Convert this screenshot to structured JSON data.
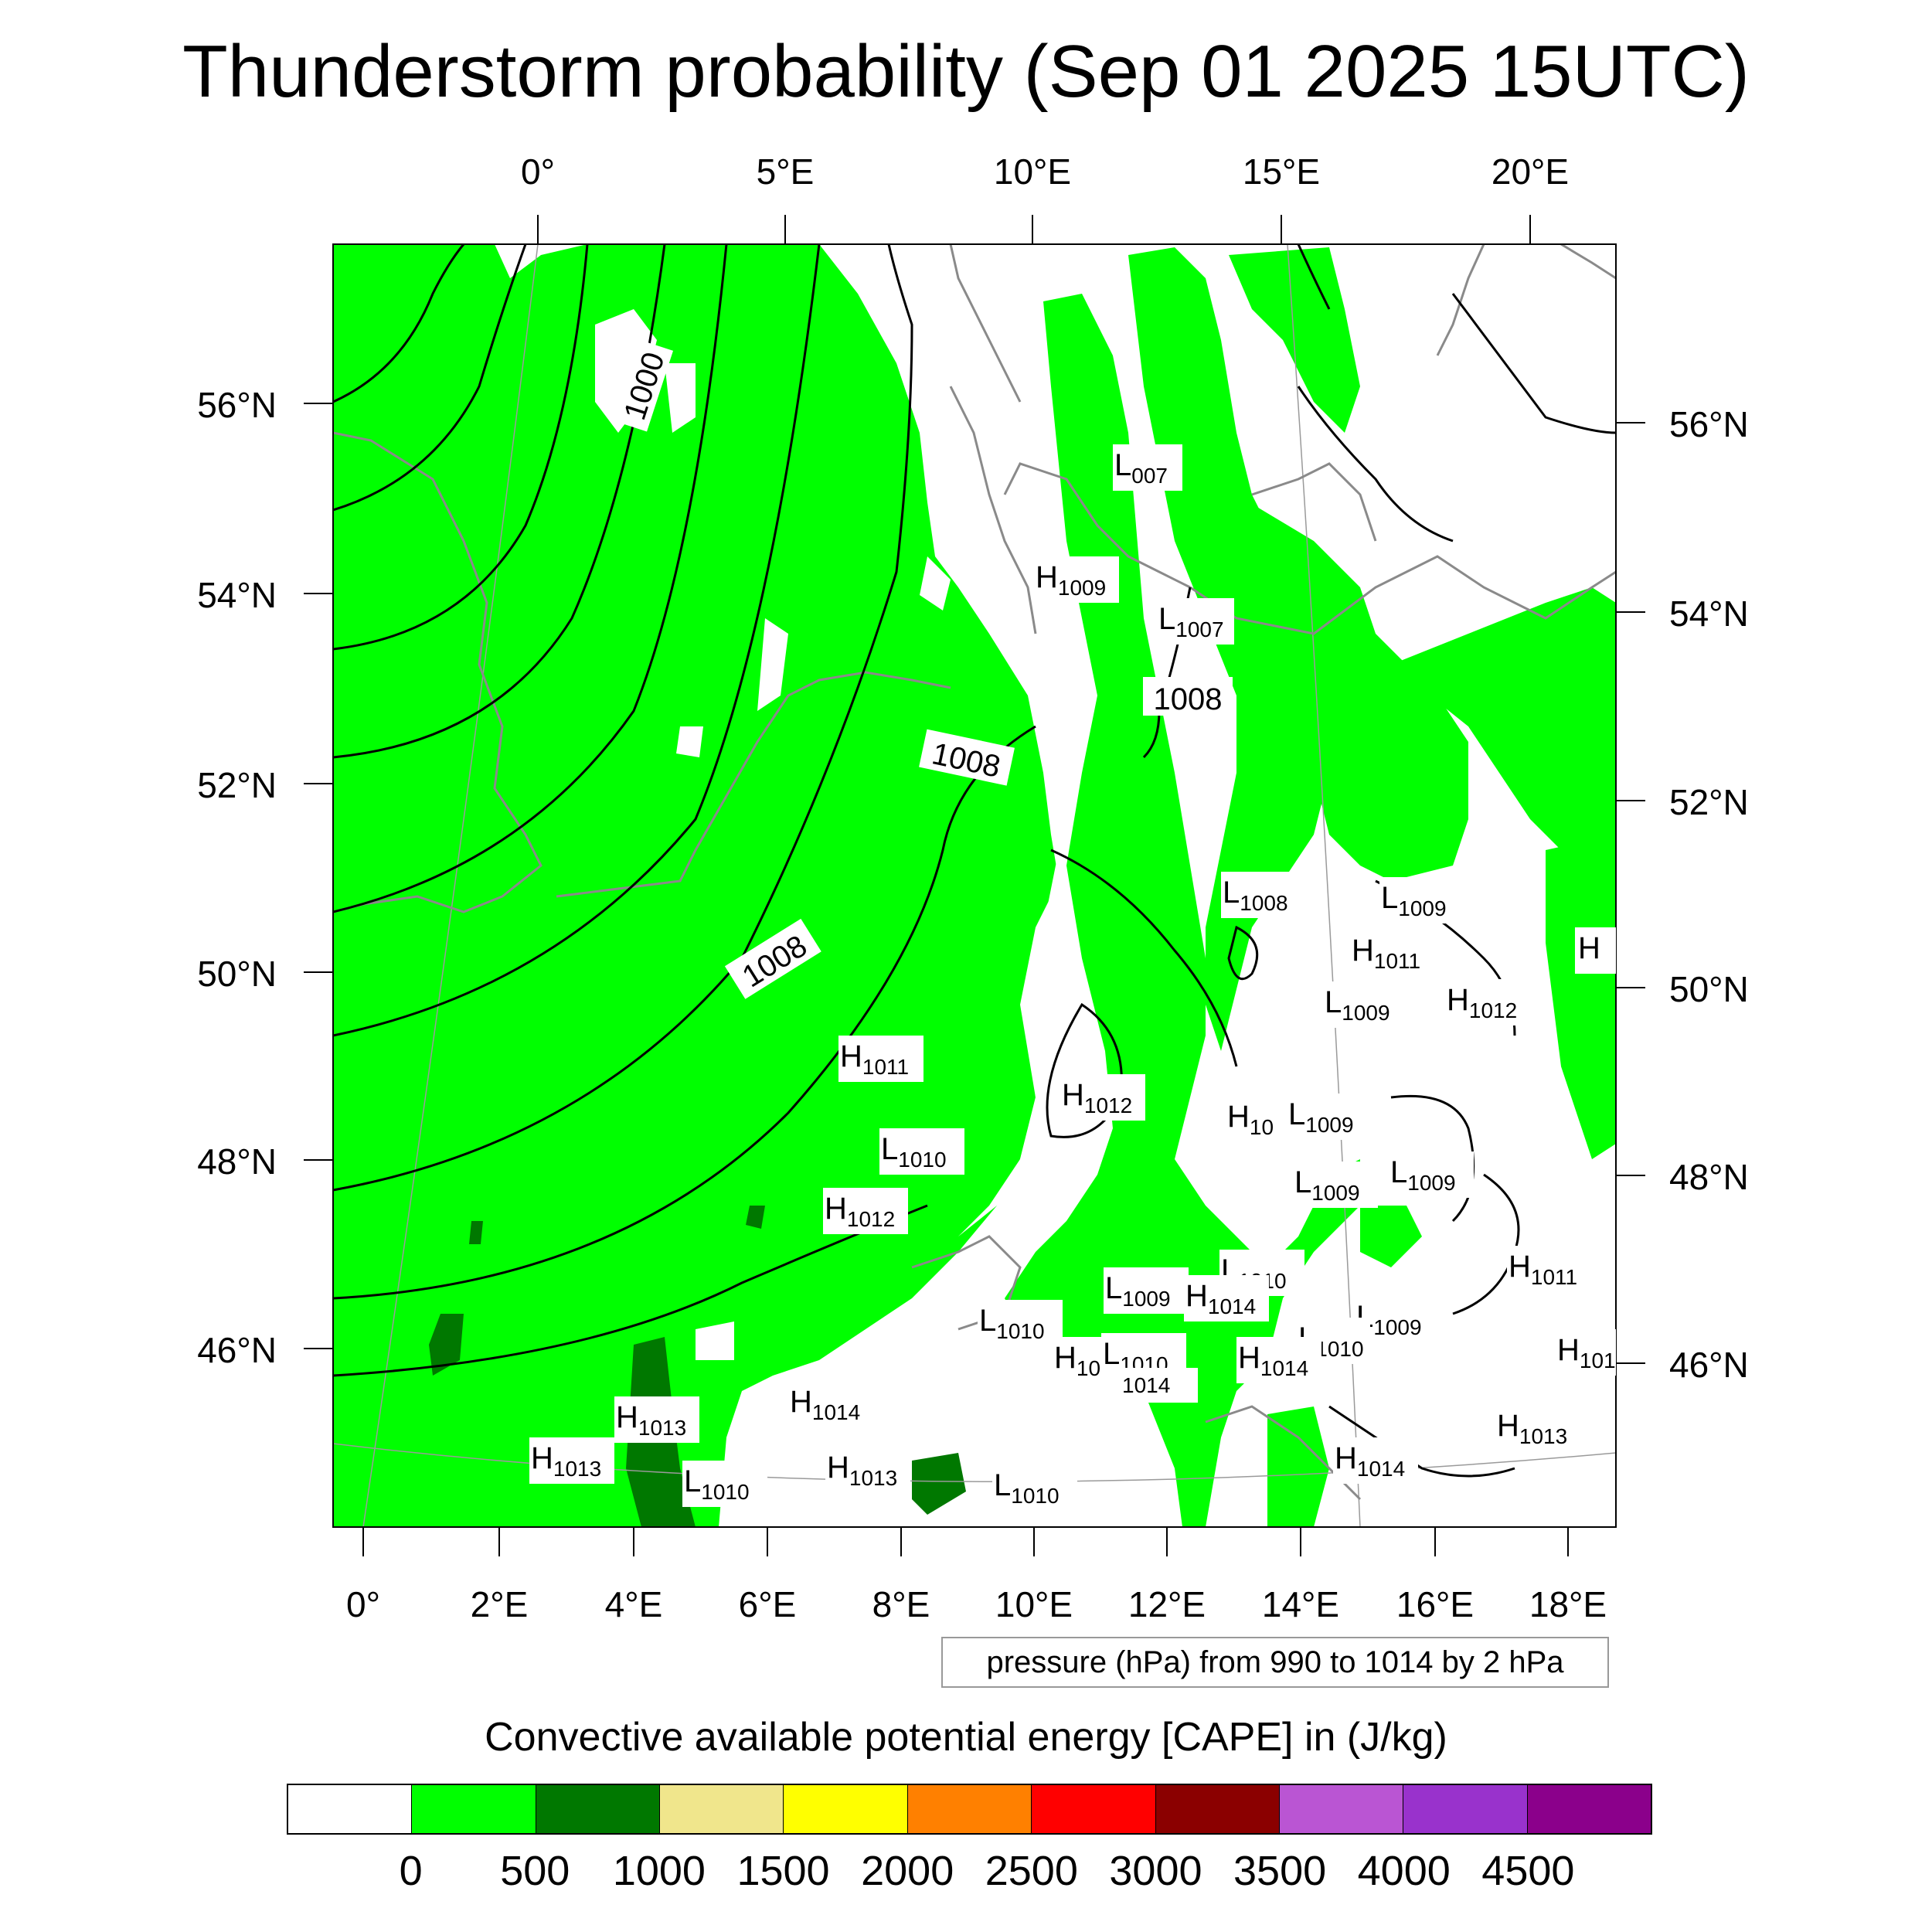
{
  "title": "Thunderstorm probability (Sep 01 2025 15UTC)",
  "map": {
    "top_lon_ticks": [
      "0°",
      "5°E",
      "10°E",
      "15°E",
      "20°E"
    ],
    "bottom_lon_ticks": [
      "0°",
      "2°E",
      "4°E",
      "6°E",
      "8°E",
      "10°E",
      "12°E",
      "14°E",
      "16°E",
      "18°E"
    ],
    "left_lat_ticks": [
      "56°N",
      "54°N",
      "52°N",
      "50°N",
      "48°N",
      "46°N"
    ],
    "right_lat_ticks": [
      "56°N",
      "54°N",
      "52°N",
      "50°N",
      "48°N",
      "46°N"
    ],
    "contour_labels": [
      "1000",
      "1008",
      "1008",
      "1008"
    ],
    "pressure_centers": [
      {
        "type": "L",
        "value": "007"
      },
      {
        "type": "H",
        "value": "1009"
      },
      {
        "type": "L",
        "value": "1007"
      },
      {
        "type": "L",
        "value": "1008"
      },
      {
        "type": "L",
        "value": "1009"
      },
      {
        "type": "H",
        "value": "1011"
      },
      {
        "type": "H",
        "value": ""
      },
      {
        "type": "L",
        "value": "1009"
      },
      {
        "type": "H",
        "value": "1012"
      },
      {
        "type": "H",
        "value": "1011"
      },
      {
        "type": "H",
        "value": "1012"
      },
      {
        "type": "H",
        "value": "10"
      },
      {
        "type": "L",
        "value": "1009"
      },
      {
        "type": "L",
        "value": "1010"
      },
      {
        "type": "L",
        "value": "1009"
      },
      {
        "type": "L",
        "value": "1009"
      },
      {
        "type": "H",
        "value": "1012"
      },
      {
        "type": "H",
        "value": "1011"
      },
      {
        "type": "L",
        "value": "1010"
      },
      {
        "type": "L",
        "value": "1009"
      },
      {
        "type": "H",
        "value": "1014"
      },
      {
        "type": "L",
        "value": "1010"
      },
      {
        "type": "L",
        "value": "1009"
      },
      {
        "type": "L",
        "value": "1010"
      },
      {
        "type": "H",
        "value": "10"
      },
      {
        "type": "L",
        "value": "1010"
      },
      {
        "type": "",
        "value": "1014"
      },
      {
        "type": "H",
        "value": "1014"
      },
      {
        "type": "H",
        "value": "101"
      },
      {
        "type": "H",
        "value": "1013"
      },
      {
        "type": "H",
        "value": "1014"
      },
      {
        "type": "H",
        "value": "1013"
      },
      {
        "type": "H",
        "value": "1013"
      },
      {
        "type": "L",
        "value": "1010"
      },
      {
        "type": "H",
        "value": "1013"
      },
      {
        "type": "L",
        "value": "1010"
      },
      {
        "type": "H",
        "value": "1014"
      }
    ]
  },
  "info_box": "pressure (hPa) from 990 to 1014 by 2 hPa",
  "colorbar": {
    "title": "Convective available potential energy [CAPE] in (J/kg)",
    "colors": [
      "#ffffff",
      "#00ff00",
      "#007800",
      "#f0e68c",
      "#ffff00",
      "#ff8000",
      "#ff0000",
      "#8b0000",
      "#ba55d3",
      "#9932cc",
      "#8b008b"
    ],
    "labels": [
      "0",
      "500",
      "1000",
      "1500",
      "2000",
      "2500",
      "3000",
      "3500",
      "4000",
      "4500"
    ]
  }
}
